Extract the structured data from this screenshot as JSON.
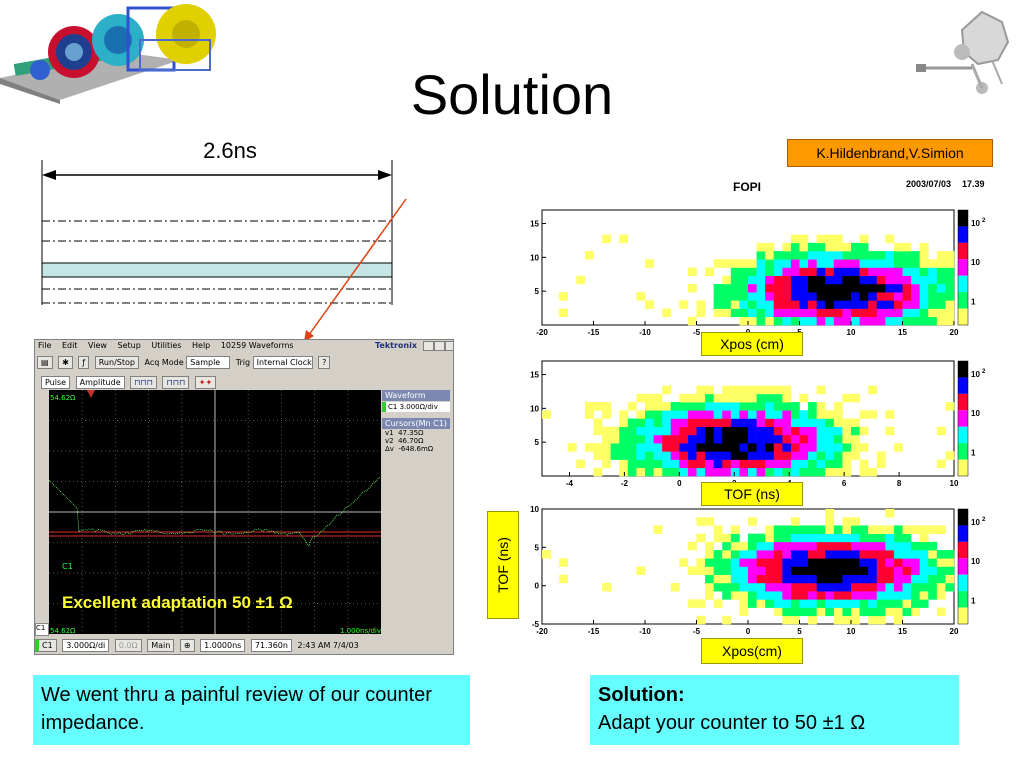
{
  "slide": {
    "title": "Solution",
    "dimension_label": "2.6ns",
    "credit": "K.Hildenbrand,V.Simion",
    "left_note": "We went thru a painful review of our counter impedance.",
    "right_note_heading": "Solution:",
    "right_note_body": "Adapt your counter to 50 ±1 Ω",
    "overlay_text": "Excellent adaptation 50 ±1 Ω"
  },
  "heatmaps": {
    "header_title": "FOPI",
    "header_date": "2003/07/03",
    "header_time": "17.39",
    "panel1_xlabel": "Xpos (cm)",
    "panel2_xlabel": "TOF (ns)",
    "panel3_xlabel": "Xpos(cm)",
    "panel3_ylabel": "TOF (ns)",
    "colorbar_labels": [
      "10",
      "2",
      "10",
      "1"
    ]
  },
  "chart_data": [
    {
      "type": "heatmap",
      "xlabel": "Xpos (cm)",
      "xlim": [
        -20,
        20
      ],
      "ylim": [
        0,
        17
      ],
      "x_ticks": [
        "-20",
        "-15",
        "-10",
        "-5",
        "0",
        "5",
        "10",
        "15",
        "20"
      ],
      "y_ticks": [
        "5",
        "10",
        "15"
      ],
      "hotspot_center": [
        9,
        5
      ],
      "color_scale": "log",
      "colorbar_ticks": [
        "10 2",
        "10",
        "1"
      ]
    },
    {
      "type": "heatmap",
      "xlabel": "TOF (ns)",
      "xlim": [
        -5,
        10
      ],
      "ylim": [
        0,
        17
      ],
      "x_ticks": [
        "-4",
        "-2",
        "0",
        "2",
        "4",
        "6",
        "8",
        "10"
      ],
      "y_ticks": [
        "5",
        "10",
        "15"
      ],
      "hotspot_center": [
        2,
        5
      ],
      "color_scale": "log",
      "colorbar_ticks": [
        "10 2",
        "10",
        "1"
      ]
    },
    {
      "type": "heatmap",
      "xlabel": "Xpos(cm)",
      "ylabel": "TOF (ns)",
      "xlim": [
        -20,
        20
      ],
      "ylim": [
        -5,
        10
      ],
      "x_ticks": [
        "-20",
        "-15",
        "-10",
        "-5",
        "0",
        "5",
        "10",
        "15",
        "20"
      ],
      "y_ticks": [
        "-5",
        "0",
        "5",
        "10"
      ],
      "hotspot_center": [
        8,
        2
      ],
      "color_scale": "log",
      "colorbar_ticks": [
        "10 2",
        "10",
        "1"
      ]
    }
  ],
  "colors": {
    "palette": [
      "#ffff66",
      "#00ff66",
      "#00ffff",
      "#ff00ff",
      "#ff0033",
      "#0000ff",
      "#000000"
    ],
    "highlight_box": "#66ffff",
    "credit_box": "#ff9900",
    "label_box": "#ffff00",
    "strip": "#c6e6e6"
  },
  "scope": {
    "menu": [
      "File",
      "Edit",
      "View",
      "Setup",
      "Utilities",
      "Help",
      "10259 Waveforms"
    ],
    "brand": "Tektronix",
    "toolbar": {
      "run_stop": "Run/Stop",
      "acq_mode_label": "Acq Mode",
      "acq_mode_value": "Sample",
      "trig_label": "Trig",
      "trig_value": "Internal Clock",
      "pulse_value": "Pulse",
      "amplitude_value": "Amplitude"
    },
    "top_ref": "54.62Ω",
    "bottom_ref": "54.62Ω",
    "time_div": "1.000ns/div",
    "channel_label": "C1",
    "waveform_header": "Waveform",
    "waveform_item": "C1 3.000Ω/div",
    "cursors_header": "Cursors(Mn C1)",
    "cursors": [
      {
        "name": "v1",
        "value": "47.35Ω"
      },
      {
        "name": "v2",
        "value": "46.70Ω"
      },
      {
        "name": "Δv",
        "value": "-648.6mΩ"
      }
    ],
    "status": {
      "ch": "C1",
      "vdiv": "3.000Ω/di",
      "offset": "0.0Ω",
      "main": "Main",
      "tdiv": "1.0000ns",
      "pos": "71.360n",
      "time": "2:43 AM 7/4/03"
    }
  }
}
